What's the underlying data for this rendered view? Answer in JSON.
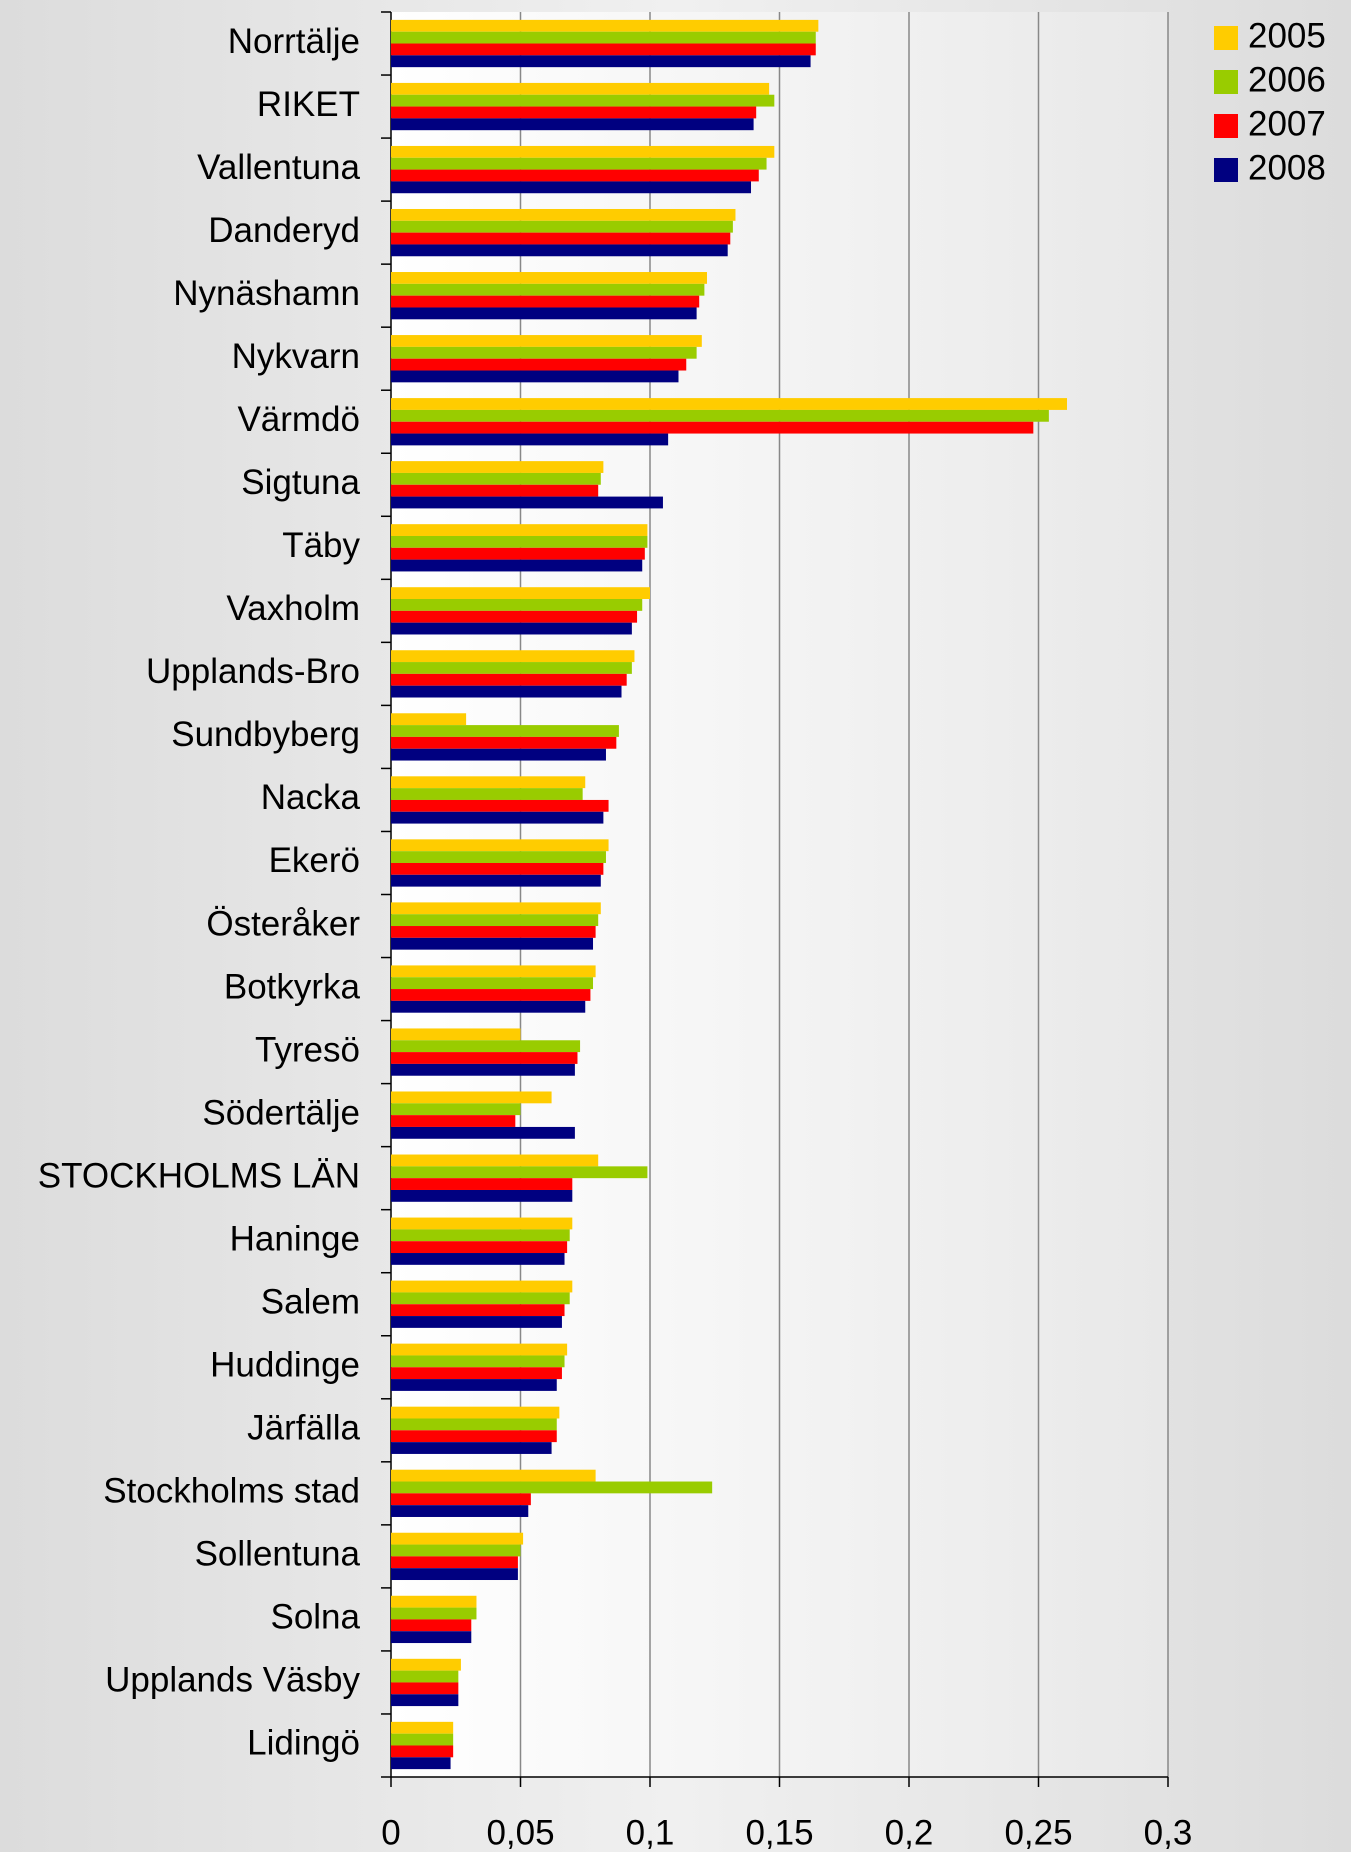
{
  "chart_data": {
    "type": "hbar",
    "categories": [
      "Norrtälje",
      "RIKET",
      "Vallentuna",
      "Danderyd",
      "Nynäshamn",
      "Nykvarn",
      "Värmdö",
      "Sigtuna",
      "Täby",
      "Vaxholm",
      "Upplands-Bro",
      "Sundbyberg",
      "Nacka",
      "Ekerö",
      "Österåker",
      "Botkyrka",
      "Tyresö",
      "Södertälje",
      "STOCKHOLMS LÄN",
      "Haninge",
      "Salem",
      "Huddinge",
      "Järfälla",
      "Stockholms stad",
      "Sollentuna",
      "Solna",
      "Upplands Väsby",
      "Lidingö"
    ],
    "series": [
      {
        "name": "2005",
        "color": "#FFCC00",
        "values": [
          0.165,
          0.146,
          0.148,
          0.133,
          0.122,
          0.12,
          0.261,
          0.082,
          0.099,
          0.1,
          0.094,
          0.029,
          0.075,
          0.084,
          0.081,
          0.079,
          0.05,
          0.062,
          0.08,
          0.07,
          0.07,
          0.068,
          0.065,
          0.079,
          0.051,
          0.033,
          0.027,
          0.024
        ]
      },
      {
        "name": "2006",
        "color": "#99CC00",
        "values": [
          0.164,
          0.148,
          0.145,
          0.132,
          0.121,
          0.118,
          0.254,
          0.081,
          0.099,
          0.097,
          0.093,
          0.088,
          0.074,
          0.083,
          0.08,
          0.078,
          0.073,
          0.05,
          0.099,
          0.069,
          0.069,
          0.067,
          0.064,
          0.124,
          0.05,
          0.033,
          0.026,
          0.024
        ]
      },
      {
        "name": "2007",
        "color": "#FF0000",
        "values": [
          0.164,
          0.141,
          0.142,
          0.131,
          0.119,
          0.114,
          0.248,
          0.08,
          0.098,
          0.095,
          0.091,
          0.087,
          0.084,
          0.082,
          0.079,
          0.077,
          0.072,
          0.048,
          0.07,
          0.068,
          0.067,
          0.066,
          0.064,
          0.054,
          0.049,
          0.031,
          0.026,
          0.024
        ]
      },
      {
        "name": "2008",
        "color": "#000080",
        "values": [
          0.162,
          0.14,
          0.139,
          0.13,
          0.118,
          0.111,
          0.107,
          0.105,
          0.097,
          0.093,
          0.089,
          0.083,
          0.082,
          0.081,
          0.078,
          0.075,
          0.071,
          0.071,
          0.07,
          0.067,
          0.066,
          0.064,
          0.062,
          0.053,
          0.049,
          0.031,
          0.026,
          0.023
        ]
      }
    ],
    "xlim": [
      0,
      0.3
    ],
    "xticks": [
      0,
      {
        "value": 0.05,
        "label": "0,05"
      },
      {
        "value": 0.1,
        "label": "0,1"
      },
      {
        "value": 0.15,
        "label": "0,15"
      },
      {
        "value": 0.2,
        "label": "0,2"
      },
      {
        "value": 0.25,
        "label": "0,25"
      },
      {
        "value": 0.3,
        "label": "0,3"
      }
    ],
    "grid": true,
    "legend": "top-right"
  }
}
